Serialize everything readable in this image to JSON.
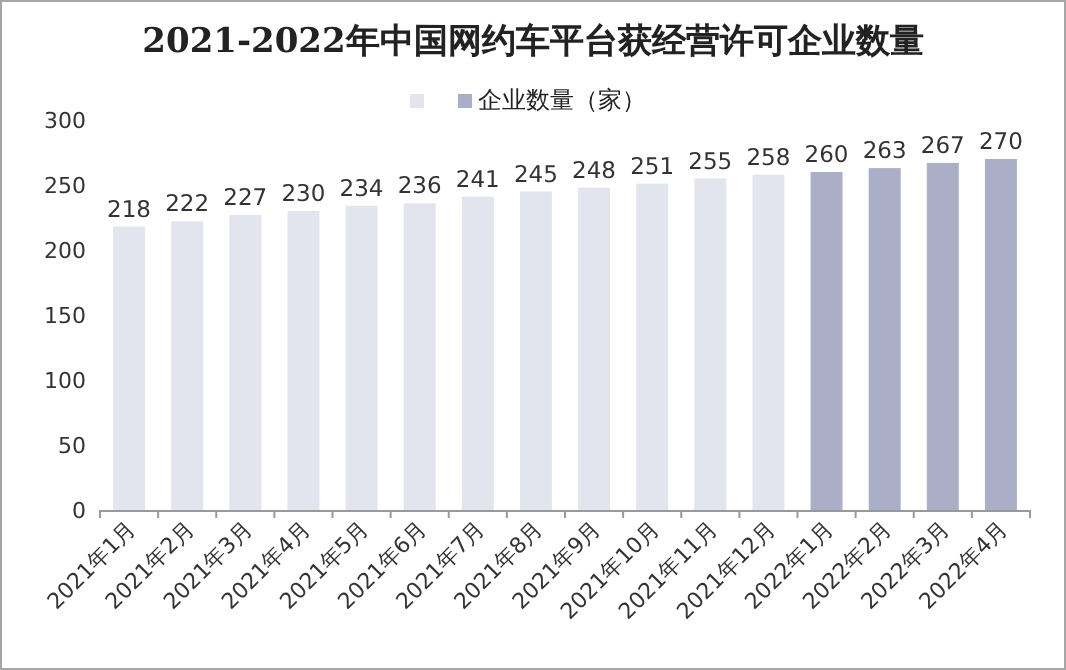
{
  "chart_data": {
    "type": "bar",
    "title": "2021-2022年中国网约车平台获经营许可企业数量",
    "categories": [
      "2021年1月",
      "2021年2月",
      "2021年3月",
      "2021年4月",
      "2021年5月",
      "2021年6月",
      "2021年7月",
      "2021年8月",
      "2021年9月",
      "2021年10月",
      "2021年11月",
      "2021年12月",
      "2022年1月",
      "2022年2月",
      "2022年3月",
      "2022年4月"
    ],
    "series": [
      {
        "color": "#e3e5ee",
        "values": [
          218,
          222,
          227,
          230,
          234,
          236,
          241,
          245,
          248,
          251,
          255,
          258,
          null,
          null,
          null,
          null
        ]
      },
      {
        "name": "企业数量（家）",
        "color": "#aaafc7",
        "values": [
          null,
          null,
          null,
          null,
          null,
          null,
          null,
          null,
          null,
          null,
          null,
          null,
          260,
          263,
          267,
          270
        ]
      }
    ],
    "ylim": [
      0,
      300
    ],
    "yticks": [
      0,
      50,
      100,
      150,
      200,
      250,
      300
    ],
    "data_labels": true,
    "grid": false,
    "legend": "top"
  }
}
